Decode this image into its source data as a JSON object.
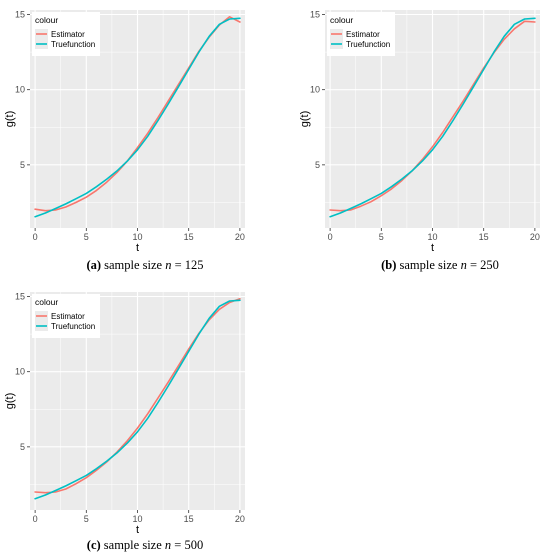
{
  "panels": [
    {
      "caption": {
        "letter": "(a)",
        "text": "sample size ",
        "var": "n",
        "eq": " = 125"
      }
    },
    {
      "caption": {
        "letter": "(b)",
        "text": "sample size ",
        "var": "n",
        "eq": " = 250"
      }
    },
    {
      "caption": {
        "letter": "(c)",
        "text": "sample size ",
        "var": "n",
        "eq": " = 500"
      }
    }
  ],
  "colors": {
    "estimator": "#F8766D",
    "truefunction": "#00BFC4",
    "panel_bg": "#EBEBEB",
    "grid": "#FFFFFF"
  },
  "chart_data": [
    {
      "type": "line",
      "xlabel": "t",
      "ylabel": "g(t)",
      "xlim": [
        -0.5,
        20.5
      ],
      "ylim": [
        0.8,
        15.3
      ],
      "xticks": [
        0,
        5,
        10,
        15,
        20
      ],
      "yticks": [
        5,
        10,
        15
      ],
      "grid": true,
      "legend_position": "top-left",
      "legend_title": "colour",
      "x": [
        0,
        1,
        2,
        3,
        4,
        5,
        6,
        7,
        8,
        9,
        10,
        11,
        12,
        13,
        14,
        15,
        16,
        17,
        18,
        19,
        20
      ],
      "series": [
        {
          "name": "Estimator",
          "values": [
            2.05,
            1.95,
            2.0,
            2.2,
            2.5,
            2.85,
            3.3,
            3.85,
            4.5,
            5.25,
            6.15,
            7.1,
            8.15,
            9.25,
            10.35,
            11.45,
            12.55,
            13.5,
            14.3,
            14.85,
            14.5
          ]
        },
        {
          "name": "Truefunction",
          "values": [
            1.55,
            1.8,
            2.1,
            2.4,
            2.75,
            3.1,
            3.55,
            4.05,
            4.6,
            5.25,
            6.0,
            6.9,
            7.95,
            9.05,
            10.2,
            11.35,
            12.5,
            13.55,
            14.35,
            14.7,
            14.75
          ]
        }
      ]
    },
    {
      "type": "line",
      "xlabel": "t",
      "ylabel": "g(t)",
      "xlim": [
        -0.5,
        20.5
      ],
      "ylim": [
        0.8,
        15.3
      ],
      "xticks": [
        0,
        5,
        10,
        15,
        20
      ],
      "yticks": [
        5,
        10,
        15
      ],
      "grid": true,
      "legend_position": "top-left",
      "legend_title": "colour",
      "x": [
        0,
        1,
        2,
        3,
        4,
        5,
        6,
        7,
        8,
        9,
        10,
        11,
        12,
        13,
        14,
        15,
        16,
        17,
        18,
        19,
        20
      ],
      "series": [
        {
          "name": "Estimator",
          "values": [
            2.0,
            1.95,
            2.0,
            2.25,
            2.55,
            2.95,
            3.4,
            3.95,
            4.6,
            5.35,
            6.2,
            7.15,
            8.2,
            9.25,
            10.35,
            11.45,
            12.45,
            13.35,
            14.05,
            14.55,
            14.5
          ]
        },
        {
          "name": "Truefunction",
          "values": [
            1.55,
            1.8,
            2.1,
            2.4,
            2.75,
            3.1,
            3.55,
            4.05,
            4.6,
            5.25,
            6.0,
            6.9,
            7.95,
            9.05,
            10.2,
            11.35,
            12.5,
            13.55,
            14.35,
            14.7,
            14.75
          ]
        }
      ]
    },
    {
      "type": "line",
      "xlabel": "t",
      "ylabel": "g(t)",
      "xlim": [
        -0.5,
        20.5
      ],
      "ylim": [
        0.8,
        15.3
      ],
      "xticks": [
        0,
        5,
        10,
        15,
        20
      ],
      "yticks": [
        5,
        10,
        15
      ],
      "grid": true,
      "legend_position": "top-left",
      "legend_title": "colour",
      "x": [
        0,
        1,
        2,
        3,
        4,
        5,
        6,
        7,
        8,
        9,
        10,
        11,
        12,
        13,
        14,
        15,
        16,
        17,
        18,
        19,
        20
      ],
      "series": [
        {
          "name": "Estimator",
          "values": [
            2.0,
            1.95,
            2.0,
            2.2,
            2.55,
            2.95,
            3.45,
            4.0,
            4.65,
            5.4,
            6.25,
            7.2,
            8.25,
            9.3,
            10.4,
            11.5,
            12.55,
            13.45,
            14.15,
            14.6,
            14.85
          ]
        },
        {
          "name": "Truefunction",
          "values": [
            1.55,
            1.8,
            2.1,
            2.4,
            2.75,
            3.1,
            3.55,
            4.05,
            4.6,
            5.25,
            6.0,
            6.9,
            7.95,
            9.05,
            10.2,
            11.35,
            12.5,
            13.55,
            14.35,
            14.7,
            14.75
          ]
        }
      ]
    }
  ]
}
